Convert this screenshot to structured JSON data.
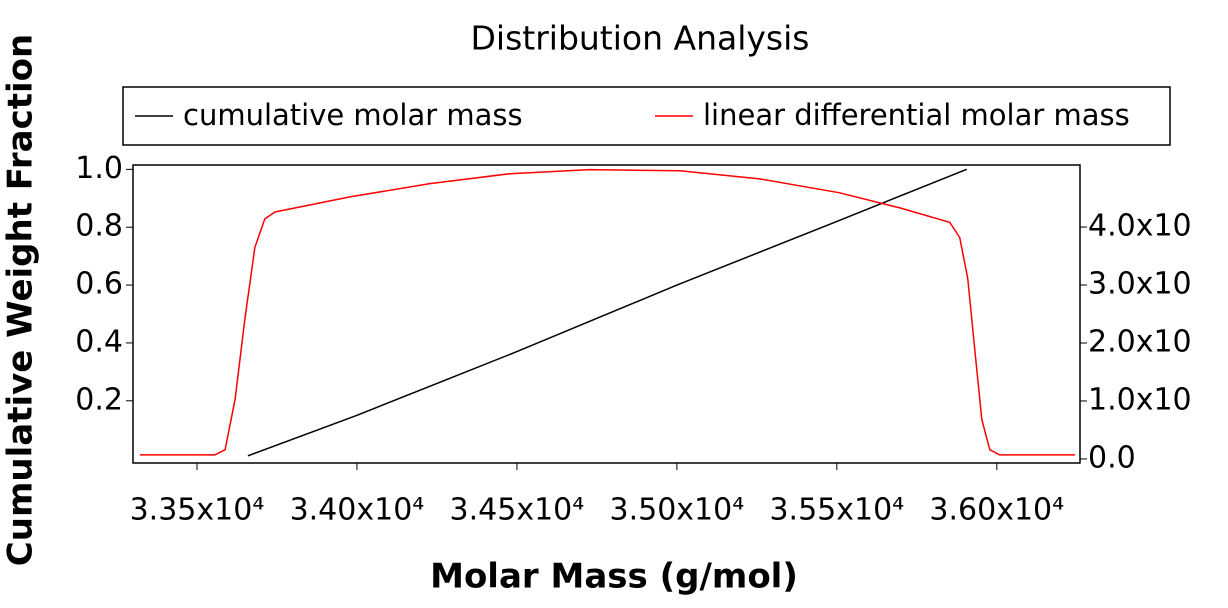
{
  "chart_data": {
    "type": "line",
    "title": "Distribution Analysis",
    "xlabel": "Molar Mass (g/mol)",
    "ylabel": "Cumulative Weight Fraction",
    "legend": "top",
    "xlim": [
      33300,
      36260
    ],
    "xticks": [
      {
        "value": 33500,
        "label": "3.35x10⁴"
      },
      {
        "value": 34000,
        "label": "3.40x10⁴"
      },
      {
        "value": 34500,
        "label": "3.45x10⁴"
      },
      {
        "value": 35000,
        "label": "3.50x10⁴"
      },
      {
        "value": 35500,
        "label": "3.55x10⁴"
      },
      {
        "value": 36000,
        "label": "3.60x10⁴"
      }
    ],
    "ylim": [
      -0.015,
      1.015
    ],
    "yticks": [
      0.2,
      0.4,
      {
        "value": 0.6,
        "label": "0.6"
      },
      0.8,
      {
        "value": 1,
        "label": "1.0"
      }
    ],
    "y2lim": [
      -0.07,
      5.07
    ],
    "y2ticks": [
      {
        "value": 0,
        "label": "0.0"
      },
      {
        "value": 1,
        "label": "1.0x10"
      },
      {
        "value": 2,
        "label": "2.0x10"
      },
      {
        "value": 3,
        "label": "3.0x10"
      },
      {
        "value": 4,
        "label": "4.0x10"
      }
    ],
    "series": [
      {
        "name": "cumulative molar mass",
        "color": "#000000",
        "x": [
          33659,
          34000,
          34500,
          35000,
          35500,
          35906
        ],
        "values": [
          0.01,
          0.15,
          0.37,
          0.6,
          0.82,
          1.0
        ]
      },
      {
        "name": "linear differential molar mass",
        "color": "#ff0000",
        "axis": "y2",
        "x": [
          33322,
          33556,
          33588,
          33619,
          33650,
          33681,
          33712,
          33744,
          33978,
          34228,
          34478,
          34728,
          35009,
          35259,
          35509,
          35697,
          35853,
          35884,
          35909,
          35931,
          35953,
          35978,
          36009,
          36244
        ],
        "values": [
          0.07,
          0.07,
          0.16,
          1.03,
          2.43,
          3.65,
          4.14,
          4.26,
          4.52,
          4.75,
          4.92,
          4.99,
          4.97,
          4.83,
          4.59,
          4.33,
          4.08,
          3.82,
          3.12,
          1.9,
          0.68,
          0.16,
          0.07,
          0.07
        ]
      }
    ]
  }
}
